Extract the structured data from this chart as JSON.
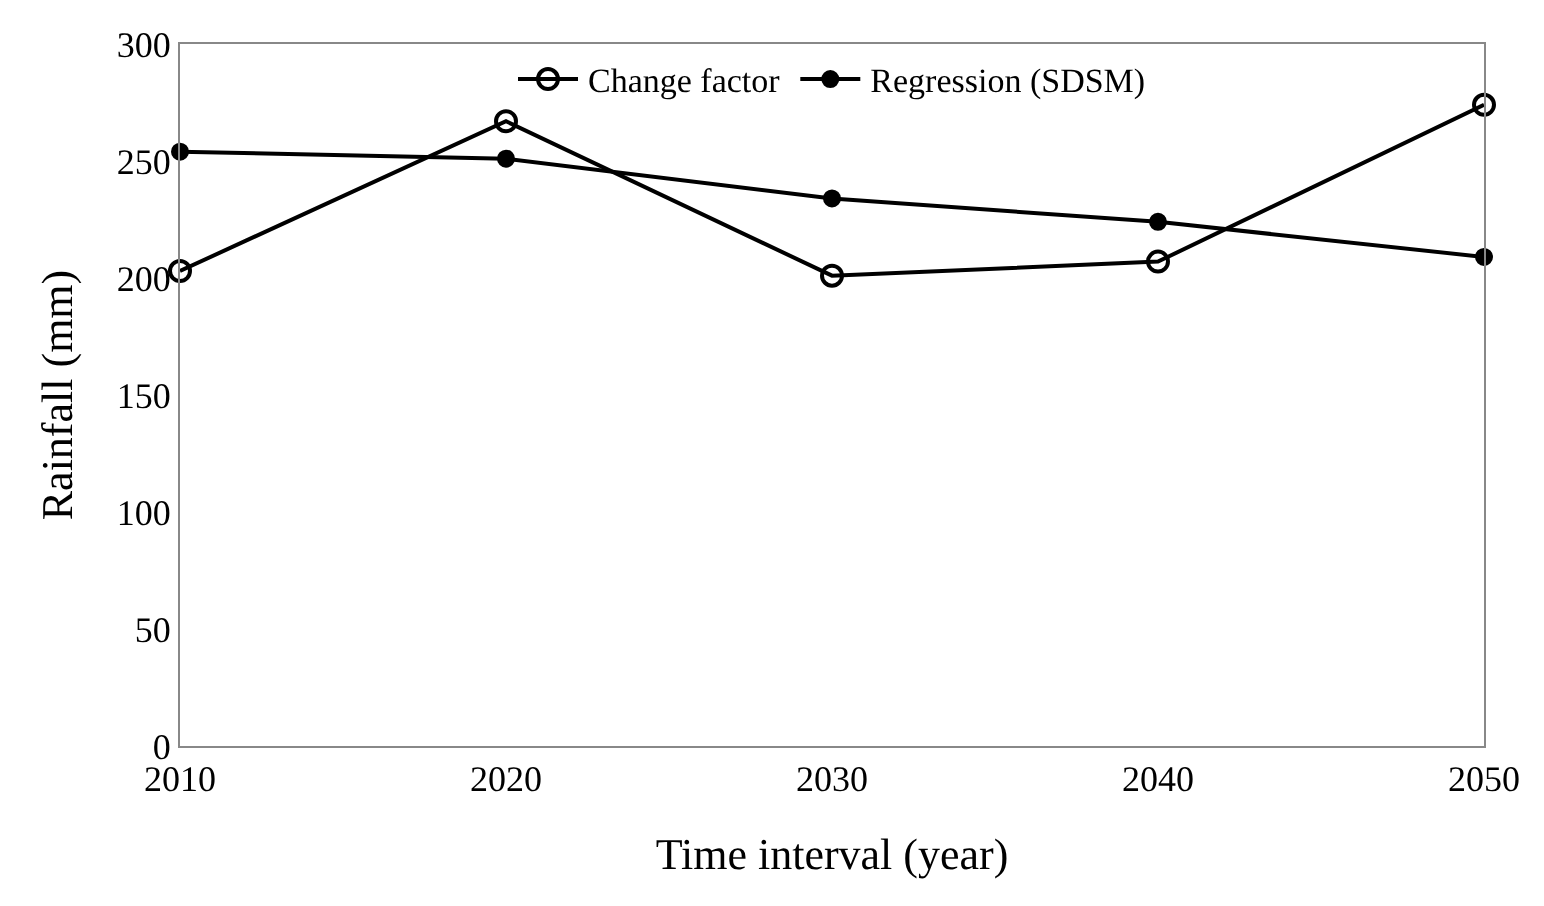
{
  "chart_data": {
    "type": "line",
    "xlabel": "Time interval (year)",
    "ylabel": "Rainfall (mm)",
    "x": [
      2010,
      2020,
      2030,
      2040,
      2050
    ],
    "series": [
      {
        "name": "Change factor",
        "color": "#000000",
        "marker": "circle-open",
        "values": [
          203,
          267,
          201,
          207,
          274
        ]
      },
      {
        "name": "Regression (SDSM)",
        "color": "#000000",
        "marker": "circle",
        "values": [
          254,
          251,
          234,
          224,
          209
        ]
      }
    ],
    "xlim": [
      2010,
      2050
    ],
    "xticks": [
      2010,
      2020,
      2030,
      2040,
      2050
    ],
    "ylim": [
      0,
      300
    ],
    "yticks": [
      0,
      50,
      100,
      150,
      200,
      250,
      300
    ],
    "grid": false,
    "legend": "top",
    "line_style": "solid"
  }
}
